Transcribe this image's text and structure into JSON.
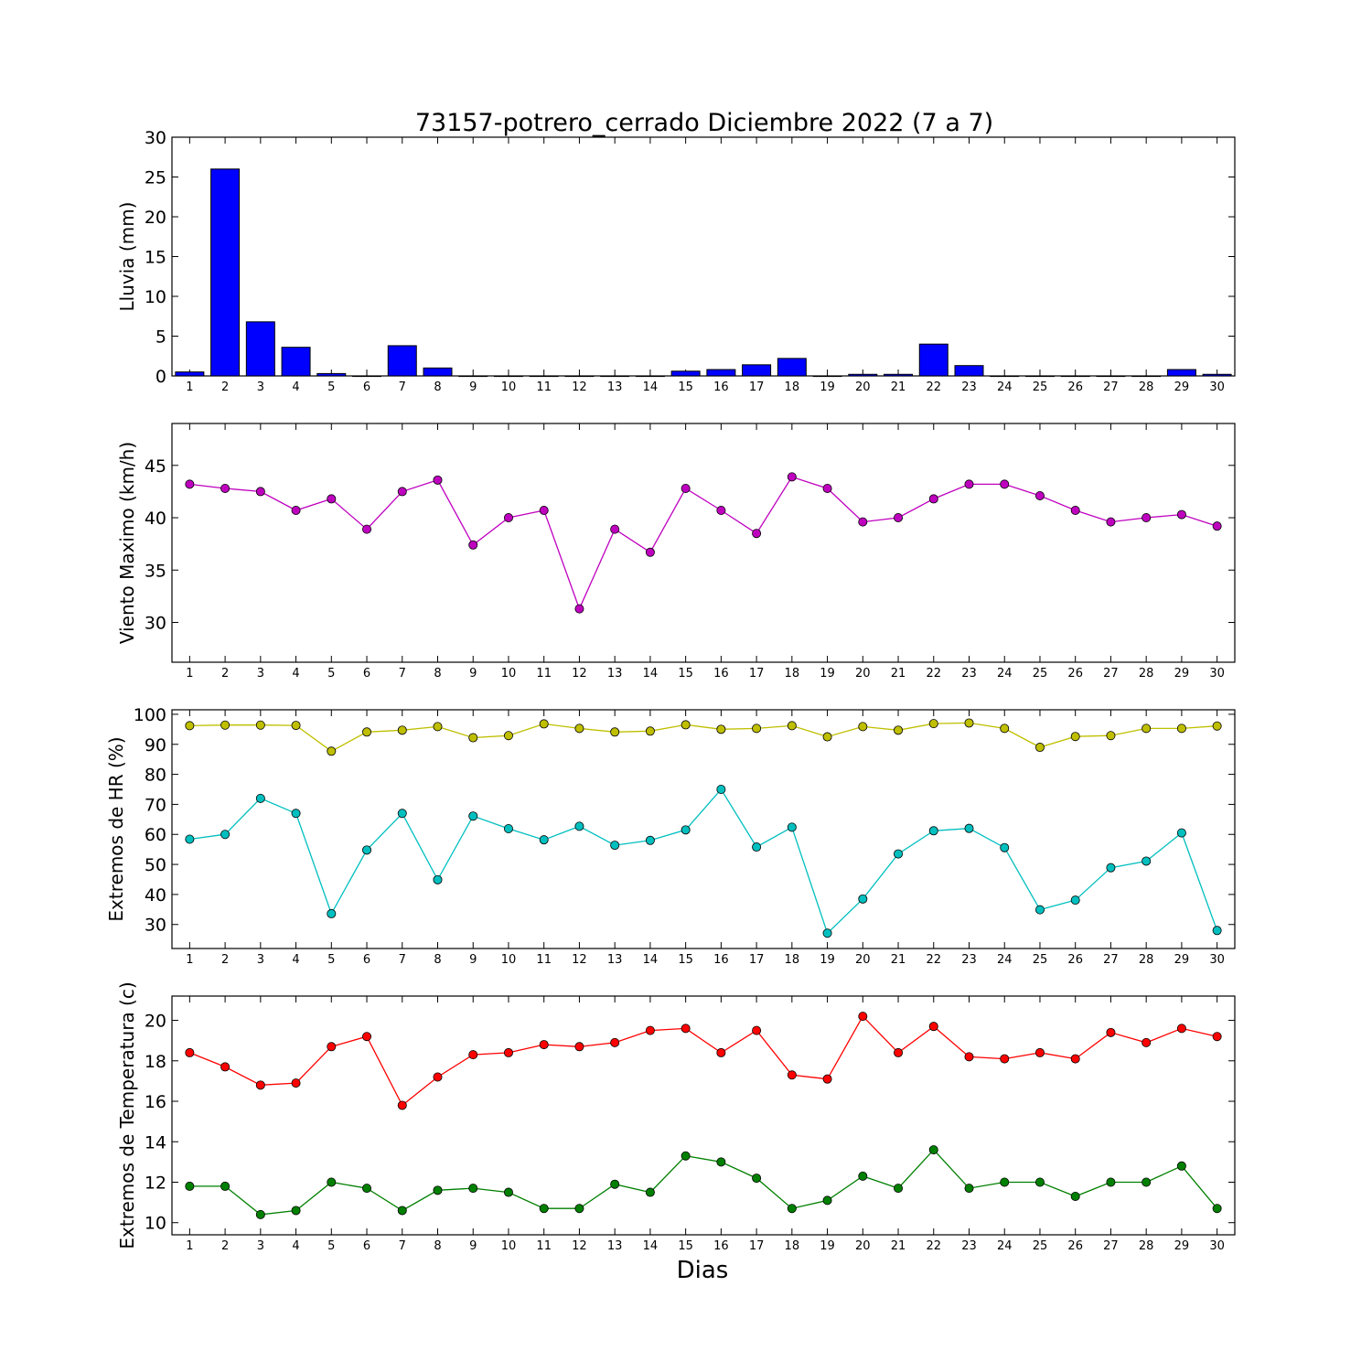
{
  "title": "73157-potrero_cerrado Diciembre 2022  (7 a 7)",
  "xlabel": "Dias",
  "chart_data": [
    {
      "type": "bar",
      "ylabel": "Lluvia (mm)",
      "ylim": [
        0,
        30
      ],
      "yticks": [
        0,
        5,
        10,
        15,
        20,
        25,
        30
      ],
      "categories": [
        "1",
        "2",
        "3",
        "4",
        "5",
        "6",
        "7",
        "8",
        "9",
        "10",
        "11",
        "12",
        "13",
        "14",
        "15",
        "16",
        "17",
        "18",
        "19",
        "20",
        "21",
        "22",
        "23",
        "24",
        "25",
        "26",
        "27",
        "28",
        "29",
        "30"
      ],
      "series": [
        {
          "color": "#0000ff",
          "values": [
            0.5,
            26.0,
            6.8,
            3.6,
            0.3,
            0.0,
            3.8,
            1.0,
            0.0,
            0.0,
            0.0,
            0.0,
            0.0,
            0.0,
            0.6,
            0.8,
            1.4,
            2.2,
            0.0,
            0.2,
            0.2,
            4.0,
            1.3,
            0.0,
            0.0,
            0.0,
            0.0,
            0.0,
            0.8,
            0.2
          ]
        }
      ]
    },
    {
      "type": "line",
      "ylabel": "Viento Maximo (km/h)",
      "ylim": [
        26.2,
        49.0
      ],
      "yticks": [
        30,
        35,
        40,
        45
      ],
      "categories": [
        "1",
        "2",
        "3",
        "4",
        "5",
        "6",
        "7",
        "8",
        "9",
        "10",
        "11",
        "12",
        "13",
        "14",
        "15",
        "16",
        "17",
        "18",
        "19",
        "20",
        "21",
        "22",
        "23",
        "24",
        "25",
        "26",
        "27",
        "28",
        "29",
        "30"
      ],
      "series": [
        {
          "color": "#bf00bf",
          "values": [
            43.2,
            42.8,
            42.5,
            40.7,
            41.8,
            38.9,
            42.5,
            43.6,
            37.4,
            40.0,
            40.7,
            31.3,
            38.9,
            36.7,
            42.8,
            40.7,
            38.5,
            43.9,
            42.8,
            39.6,
            40.0,
            41.8,
            43.2,
            43.2,
            42.1,
            40.7,
            39.6,
            40.0,
            40.3,
            39.2
          ]
        }
      ]
    },
    {
      "type": "line",
      "ylabel": "Extremos de HR (%)",
      "ylim": [
        22,
        101.5
      ],
      "yticks": [
        30,
        40,
        50,
        60,
        70,
        80,
        90,
        100
      ],
      "categories": [
        "1",
        "2",
        "3",
        "4",
        "5",
        "6",
        "7",
        "8",
        "9",
        "10",
        "11",
        "12",
        "13",
        "14",
        "15",
        "16",
        "17",
        "18",
        "19",
        "20",
        "21",
        "22",
        "23",
        "24",
        "25",
        "26",
        "27",
        "28",
        "29",
        "30"
      ],
      "series": [
        {
          "color": "#bfbf00",
          "values": [
            96.2,
            96.4,
            96.4,
            96.3,
            87.7,
            94.1,
            94.7,
            95.9,
            92.2,
            92.9,
            96.8,
            95.3,
            94.1,
            94.4,
            96.5,
            95.0,
            95.3,
            96.2,
            92.5,
            95.9,
            94.7,
            96.9,
            97.1,
            95.3,
            89.0,
            92.6,
            92.9,
            95.3,
            95.3,
            96.1
          ]
        },
        {
          "color": "#00bfbf",
          "values": [
            58.4,
            60.0,
            72.0,
            67.0,
            33.6,
            54.8,
            67.0,
            44.9,
            66.1,
            61.9,
            58.2,
            62.7,
            56.4,
            58.0,
            61.5,
            75.0,
            55.8,
            62.4,
            27.1,
            38.5,
            53.5,
            61.2,
            62.0,
            55.6,
            34.9,
            38.1,
            48.9,
            51.1,
            60.5,
            28.0
          ]
        }
      ]
    },
    {
      "type": "line",
      "ylabel": "Extremos de Temperatura (c)",
      "ylim": [
        9.4,
        21.2
      ],
      "yticks": [
        10,
        12,
        14,
        16,
        18,
        20
      ],
      "categories": [
        "1",
        "2",
        "3",
        "4",
        "5",
        "6",
        "7",
        "8",
        "9",
        "10",
        "11",
        "12",
        "13",
        "14",
        "15",
        "16",
        "17",
        "18",
        "19",
        "20",
        "21",
        "22",
        "23",
        "24",
        "25",
        "26",
        "27",
        "28",
        "29",
        "30"
      ],
      "series": [
        {
          "color": "#ff0000",
          "values": [
            18.4,
            17.7,
            16.8,
            16.9,
            18.7,
            19.2,
            15.8,
            17.2,
            18.3,
            18.4,
            18.8,
            18.7,
            18.9,
            19.5,
            19.6,
            18.4,
            19.5,
            17.3,
            17.1,
            20.2,
            18.4,
            19.7,
            18.2,
            18.1,
            18.4,
            18.1,
            19.4,
            18.9,
            19.6,
            19.2
          ]
        },
        {
          "color": "#008000",
          "values": [
            11.8,
            11.8,
            10.4,
            10.6,
            12.0,
            11.7,
            10.6,
            11.6,
            11.7,
            11.5,
            10.7,
            10.7,
            11.9,
            11.5,
            13.3,
            13.0,
            12.2,
            10.7,
            11.1,
            12.3,
            11.7,
            13.6,
            11.7,
            12.0,
            12.0,
            11.3,
            12.0,
            12.0,
            12.8,
            10.7
          ]
        }
      ]
    }
  ]
}
